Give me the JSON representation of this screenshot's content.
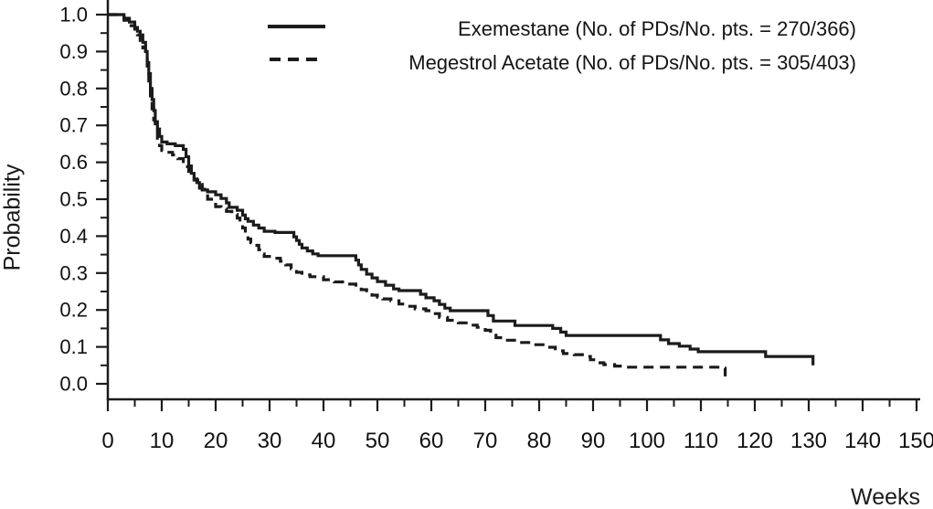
{
  "chart_data": {
    "type": "line",
    "subtype": "kaplan-meier-step",
    "title": "",
    "xlabel": "Weeks",
    "ylabel": "Probability",
    "xlim": [
      0,
      150
    ],
    "ylim": [
      0.0,
      1.0
    ],
    "grid": false,
    "legend_position": "top-center",
    "x_major_ticks": [
      0,
      10,
      20,
      30,
      40,
      50,
      60,
      70,
      80,
      90,
      100,
      110,
      120,
      130,
      140,
      150
    ],
    "x_minor_tick_step": 5,
    "y_major_ticks": [
      0.0,
      0.1,
      0.2,
      0.3,
      0.4,
      0.5,
      0.6,
      0.7,
      0.8,
      0.9,
      1.0
    ],
    "y_minor_tick_step": 0.05,
    "axis_color": "#1b1b1b",
    "series": [
      {
        "name": "exemestane",
        "label": "Exemestane (No. of PDs/No. pts. = 270/366)",
        "events_ratio": "270/366",
        "line_style": "solid",
        "color": "#1b1b1b",
        "points": [
          [
            0,
            1.0
          ],
          [
            3,
            0.99
          ],
          [
            4,
            0.98
          ],
          [
            5,
            0.965
          ],
          [
            5.5,
            0.955
          ],
          [
            6,
            0.945
          ],
          [
            6.5,
            0.925
          ],
          [
            7,
            0.9
          ],
          [
            7.3,
            0.87
          ],
          [
            7.6,
            0.84
          ],
          [
            7.9,
            0.8
          ],
          [
            8.2,
            0.77
          ],
          [
            8.5,
            0.74
          ],
          [
            8.8,
            0.71
          ],
          [
            9.2,
            0.69
          ],
          [
            9.6,
            0.67
          ],
          [
            10,
            0.655
          ],
          [
            11,
            0.65
          ],
          [
            12.5,
            0.645
          ],
          [
            14,
            0.635
          ],
          [
            14.5,
            0.615
          ],
          [
            15,
            0.59
          ],
          [
            15.5,
            0.57
          ],
          [
            16,
            0.555
          ],
          [
            16.5,
            0.545
          ],
          [
            17,
            0.53
          ],
          [
            17.5,
            0.525
          ],
          [
            18.5,
            0.52
          ],
          [
            20,
            0.512
          ],
          [
            21,
            0.502
          ],
          [
            22,
            0.49
          ],
          [
            22.5,
            0.478
          ],
          [
            24,
            0.47
          ],
          [
            25,
            0.457
          ],
          [
            25.5,
            0.447
          ],
          [
            26,
            0.44
          ],
          [
            27,
            0.43
          ],
          [
            28,
            0.422
          ],
          [
            29,
            0.413
          ],
          [
            31,
            0.41
          ],
          [
            34.5,
            0.398
          ],
          [
            35,
            0.388
          ],
          [
            35.5,
            0.378
          ],
          [
            36,
            0.368
          ],
          [
            37,
            0.36
          ],
          [
            38,
            0.352
          ],
          [
            39,
            0.347
          ],
          [
            46,
            0.335
          ],
          [
            46.5,
            0.322
          ],
          [
            47,
            0.31
          ],
          [
            48,
            0.297
          ],
          [
            49,
            0.287
          ],
          [
            50,
            0.277
          ],
          [
            51.5,
            0.267
          ],
          [
            53,
            0.257
          ],
          [
            54,
            0.2525
          ],
          [
            58,
            0.2426
          ],
          [
            59,
            0.233
          ],
          [
            60.5,
            0.225
          ],
          [
            61.5,
            0.215
          ],
          [
            62.5,
            0.205
          ],
          [
            63.5,
            0.198
          ],
          [
            70.5,
            0.185
          ],
          [
            71.5,
            0.17
          ],
          [
            75.5,
            0.158
          ],
          [
            82.5,
            0.15
          ],
          [
            84,
            0.14
          ],
          [
            85,
            0.131
          ],
          [
            102.5,
            0.119
          ],
          [
            104,
            0.109
          ],
          [
            106,
            0.102
          ],
          [
            108,
            0.094
          ],
          [
            109.5,
            0.087
          ],
          [
            122,
            0.074
          ],
          [
            130.8,
            0.05
          ]
        ]
      },
      {
        "name": "megestrol-acetate",
        "label": "Megestrol Acetate (No. of PDs/No. pts. = 305/403)",
        "events_ratio": "305/403",
        "line_style": "dashed",
        "color": "#1b1b1b",
        "points": [
          [
            0,
            1.0
          ],
          [
            3,
            0.985
          ],
          [
            4,
            0.97
          ],
          [
            5,
            0.955
          ],
          [
            5.5,
            0.945
          ],
          [
            6,
            0.93
          ],
          [
            6.5,
            0.91
          ],
          [
            7,
            0.88
          ],
          [
            7.3,
            0.85
          ],
          [
            7.6,
            0.815
          ],
          [
            7.9,
            0.78
          ],
          [
            8.2,
            0.745
          ],
          [
            8.5,
            0.715
          ],
          [
            8.8,
            0.69
          ],
          [
            9.2,
            0.665
          ],
          [
            9.6,
            0.645
          ],
          [
            10,
            0.632
          ],
          [
            11,
            0.627
          ],
          [
            12,
            0.62
          ],
          [
            13,
            0.61
          ],
          [
            14,
            0.598
          ],
          [
            14.5,
            0.588
          ],
          [
            15,
            0.575
          ],
          [
            15.5,
            0.562
          ],
          [
            16,
            0.552
          ],
          [
            17,
            0.54
          ],
          [
            17.5,
            0.527
          ],
          [
            18,
            0.513
          ],
          [
            18.5,
            0.5
          ],
          [
            19.5,
            0.49
          ],
          [
            20,
            0.48
          ],
          [
            21,
            0.474
          ],
          [
            22,
            0.467
          ],
          [
            23,
            0.459
          ],
          [
            24,
            0.449
          ],
          [
            24.5,
            0.437
          ],
          [
            25,
            0.422
          ],
          [
            25.5,
            0.405
          ],
          [
            26,
            0.392
          ],
          [
            26.5,
            0.382
          ],
          [
            27,
            0.375
          ],
          [
            28,
            0.363
          ],
          [
            28.5,
            0.352
          ],
          [
            29,
            0.345
          ],
          [
            31,
            0.34
          ],
          [
            32,
            0.332
          ],
          [
            33,
            0.322
          ],
          [
            34,
            0.312
          ],
          [
            35,
            0.302
          ],
          [
            36,
            0.295
          ],
          [
            37.5,
            0.29
          ],
          [
            40,
            0.282
          ],
          [
            42,
            0.276
          ],
          [
            44,
            0.27
          ],
          [
            46,
            0.263
          ],
          [
            47,
            0.255
          ],
          [
            48,
            0.247
          ],
          [
            49,
            0.24
          ],
          [
            50,
            0.235
          ],
          [
            51,
            0.23
          ],
          [
            52.5,
            0.225
          ],
          [
            54,
            0.216
          ],
          [
            55.5,
            0.21
          ],
          [
            57,
            0.203
          ],
          [
            59,
            0.198
          ],
          [
            60,
            0.19
          ],
          [
            61.5,
            0.18
          ],
          [
            63,
            0.172
          ],
          [
            65,
            0.165
          ],
          [
            67,
            0.159
          ],
          [
            68.5,
            0.153
          ],
          [
            70,
            0.145
          ],
          [
            71,
            0.138
          ],
          [
            72,
            0.125
          ],
          [
            73.5,
            0.118
          ],
          [
            76,
            0.112
          ],
          [
            79,
            0.106
          ],
          [
            81.5,
            0.099
          ],
          [
            83,
            0.089
          ],
          [
            84.5,
            0.082
          ],
          [
            86.5,
            0.079
          ],
          [
            88.5,
            0.074
          ],
          [
            89.5,
            0.065
          ],
          [
            90.5,
            0.057
          ],
          [
            92,
            0.052
          ],
          [
            94,
            0.048
          ],
          [
            96,
            0.045
          ],
          [
            113.5,
            0.042
          ],
          [
            114.5,
            0.02
          ]
        ]
      }
    ]
  }
}
